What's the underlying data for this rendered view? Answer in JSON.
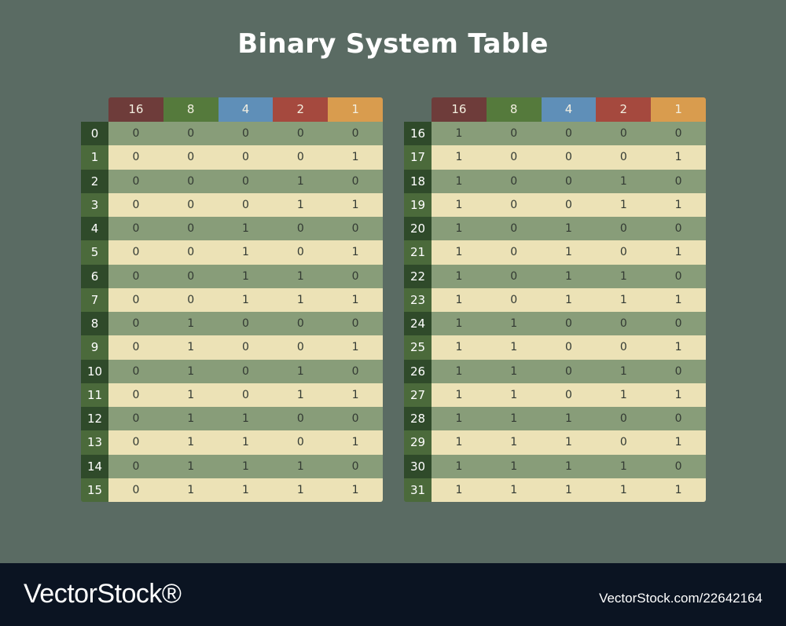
{
  "title": "Binary System Table",
  "headers": [
    "16",
    "8",
    "4",
    "2",
    "1"
  ],
  "header_colors": [
    "#6e3c3a",
    "#557a3c",
    "#5f8fb8",
    "#a5493e",
    "#d99c4e"
  ],
  "left_table": [
    {
      "label": "0",
      "bits": [
        "0",
        "0",
        "0",
        "0",
        "0"
      ]
    },
    {
      "label": "1",
      "bits": [
        "0",
        "0",
        "0",
        "0",
        "1"
      ]
    },
    {
      "label": "2",
      "bits": [
        "0",
        "0",
        "0",
        "1",
        "0"
      ]
    },
    {
      "label": "3",
      "bits": [
        "0",
        "0",
        "0",
        "1",
        "1"
      ]
    },
    {
      "label": "4",
      "bits": [
        "0",
        "0",
        "1",
        "0",
        "0"
      ]
    },
    {
      "label": "5",
      "bits": [
        "0",
        "0",
        "1",
        "0",
        "1"
      ]
    },
    {
      "label": "6",
      "bits": [
        "0",
        "0",
        "1",
        "1",
        "0"
      ]
    },
    {
      "label": "7",
      "bits": [
        "0",
        "0",
        "1",
        "1",
        "1"
      ]
    },
    {
      "label": "8",
      "bits": [
        "0",
        "1",
        "0",
        "0",
        "0"
      ]
    },
    {
      "label": "9",
      "bits": [
        "0",
        "1",
        "0",
        "0",
        "1"
      ]
    },
    {
      "label": "10",
      "bits": [
        "0",
        "1",
        "0",
        "1",
        "0"
      ]
    },
    {
      "label": "11",
      "bits": [
        "0",
        "1",
        "0",
        "1",
        "1"
      ]
    },
    {
      "label": "12",
      "bits": [
        "0",
        "1",
        "1",
        "0",
        "0"
      ]
    },
    {
      "label": "13",
      "bits": [
        "0",
        "1",
        "1",
        "0",
        "1"
      ]
    },
    {
      "label": "14",
      "bits": [
        "0",
        "1",
        "1",
        "1",
        "0"
      ]
    },
    {
      "label": "15",
      "bits": [
        "0",
        "1",
        "1",
        "1",
        "1"
      ]
    }
  ],
  "right_table": [
    {
      "label": "16",
      "bits": [
        "1",
        "0",
        "0",
        "0",
        "0"
      ]
    },
    {
      "label": "17",
      "bits": [
        "1",
        "0",
        "0",
        "0",
        "1"
      ]
    },
    {
      "label": "18",
      "bits": [
        "1",
        "0",
        "0",
        "1",
        "0"
      ]
    },
    {
      "label": "19",
      "bits": [
        "1",
        "0",
        "0",
        "1",
        "1"
      ]
    },
    {
      "label": "20",
      "bits": [
        "1",
        "0",
        "1",
        "0",
        "0"
      ]
    },
    {
      "label": "21",
      "bits": [
        "1",
        "0",
        "1",
        "0",
        "1"
      ]
    },
    {
      "label": "22",
      "bits": [
        "1",
        "0",
        "1",
        "1",
        "0"
      ]
    },
    {
      "label": "23",
      "bits": [
        "1",
        "0",
        "1",
        "1",
        "1"
      ]
    },
    {
      "label": "24",
      "bits": [
        "1",
        "1",
        "0",
        "0",
        "0"
      ]
    },
    {
      "label": "25",
      "bits": [
        "1",
        "1",
        "0",
        "0",
        "1"
      ]
    },
    {
      "label": "26",
      "bits": [
        "1",
        "1",
        "0",
        "1",
        "0"
      ]
    },
    {
      "label": "27",
      "bits": [
        "1",
        "1",
        "0",
        "1",
        "1"
      ]
    },
    {
      "label": "28",
      "bits": [
        "1",
        "1",
        "1",
        "0",
        "0"
      ]
    },
    {
      "label": "29",
      "bits": [
        "1",
        "1",
        "1",
        "0",
        "1"
      ]
    },
    {
      "label": "30",
      "bits": [
        "1",
        "1",
        "1",
        "1",
        "0"
      ]
    },
    {
      "label": "31",
      "bits": [
        "1",
        "1",
        "1",
        "1",
        "1"
      ]
    }
  ],
  "footer": {
    "brand": "VectorStock®",
    "url": "VectorStock.com/22642164"
  }
}
